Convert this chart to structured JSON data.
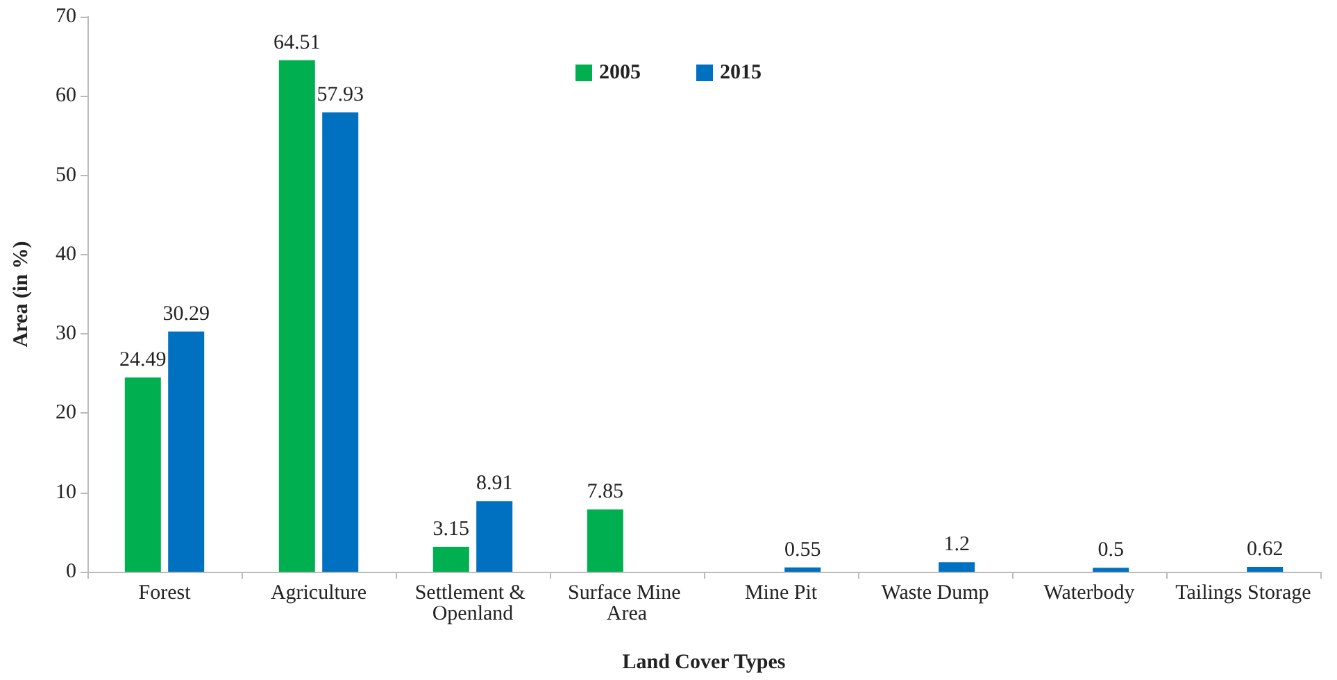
{
  "chart_data": {
    "type": "bar",
    "xlabel": "Land Cover Types",
    "ylabel": "Area (in %)",
    "categories": [
      "Forest",
      "Agriculture",
      "Settlement & Openland",
      "Surface Mine Area",
      "Mine Pit",
      "Waste Dump",
      "Waterbody",
      "Tailings Storage"
    ],
    "series": [
      {
        "name": "2005",
        "color": "#00b050",
        "values": [
          24.49,
          64.51,
          3.15,
          7.85,
          null,
          null,
          null,
          null
        ]
      },
      {
        "name": "2015",
        "color": "#0070c0",
        "values": [
          30.29,
          57.93,
          8.91,
          null,
          0.55,
          1.2,
          0.5,
          0.62
        ]
      }
    ],
    "ylim": [
      0,
      70
    ],
    "yticks": [
      0,
      10,
      20,
      30,
      40,
      50,
      60,
      70
    ],
    "grid": false,
    "legend": "top",
    "data_labels": true
  }
}
